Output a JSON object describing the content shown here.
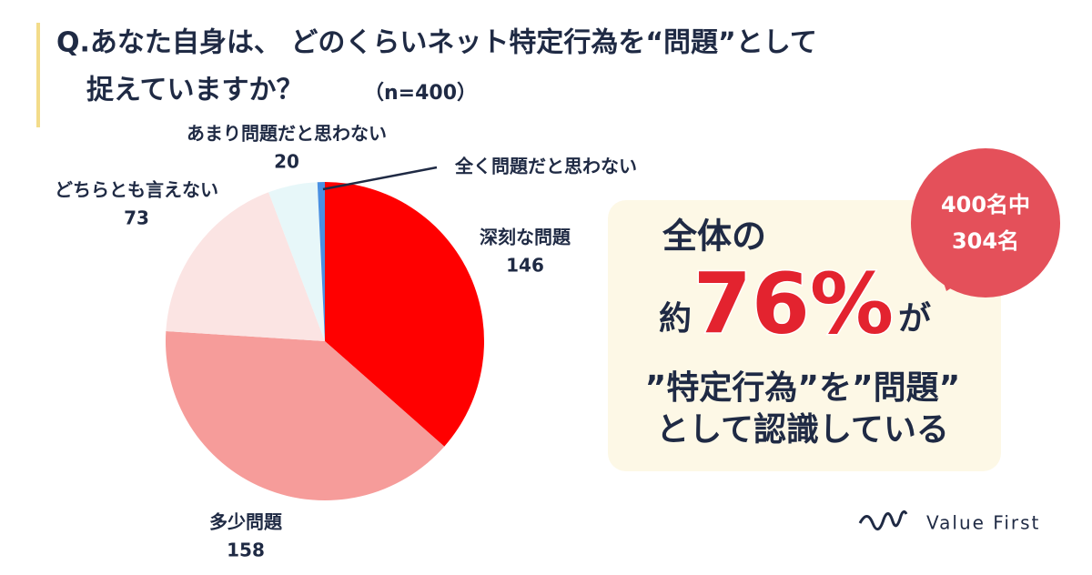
{
  "title_lines": [
    "Q.あなた自身は、 どのくらいネット特定行為を“問題”として",
    "捉えていますか？"
  ],
  "sample_note": "（n=400）",
  "chart_data": {
    "type": "pie",
    "categories": [
      "深刻な問題",
      "多少問題",
      "どちらとも言えない",
      "あまり問題だと思わない",
      "全く問題だと思わない"
    ],
    "values": [
      146,
      158,
      73,
      20,
      3
    ],
    "colors": [
      "#ff0000",
      "#f69c9a",
      "#fbe4e3",
      "#e7f7f9",
      "#4a90e2"
    ]
  },
  "callout": {
    "line1": "全体の",
    "prefix": "約",
    "percent": "76%",
    "suffix": "が",
    "line3": "”特定行為”を”問題”",
    "line4": "として認識している"
  },
  "bubble": {
    "line1": "400名中",
    "line2": "304名"
  },
  "logo": "Value First"
}
